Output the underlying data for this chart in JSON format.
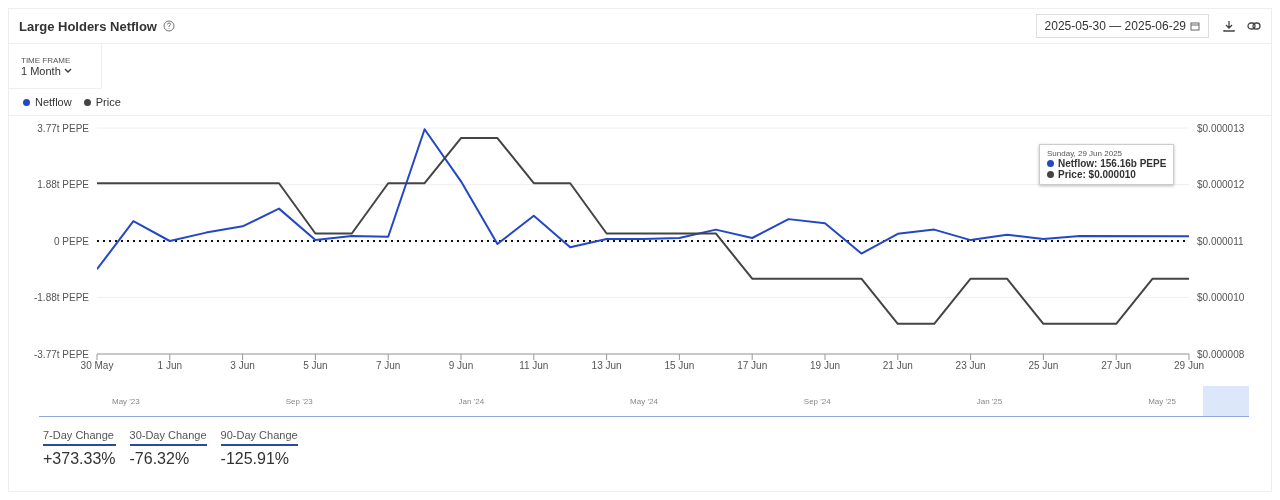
{
  "chart_data": {
    "type": "line",
    "title": "Large Holders Netflow",
    "x": [
      "2025-05-30",
      "2025-05-31",
      "2025-06-01",
      "2025-06-02",
      "2025-06-03",
      "2025-06-04",
      "2025-06-05",
      "2025-06-06",
      "2025-06-07",
      "2025-06-08",
      "2025-06-09",
      "2025-06-10",
      "2025-06-11",
      "2025-06-12",
      "2025-06-13",
      "2025-06-14",
      "2025-06-15",
      "2025-06-16",
      "2025-06-17",
      "2025-06-18",
      "2025-06-19",
      "2025-06-20",
      "2025-06-21",
      "2025-06-22",
      "2025-06-23",
      "2025-06-24",
      "2025-06-25",
      "2025-06-26",
      "2025-06-27",
      "2025-06-28",
      "2025-06-29"
    ],
    "series": [
      {
        "name": "Netflow",
        "color": "#2347c5",
        "values": [
          -0.94,
          0.66,
          0.0,
          0.28,
          0.49,
          1.08,
          0.03,
          0.17,
          0.14,
          3.73,
          1.99,
          -0.1,
          0.84,
          -0.21,
          0.07,
          0.07,
          0.1,
          0.38,
          0.1,
          0.73,
          0.59,
          -0.42,
          0.24,
          0.38,
          0.03,
          0.21,
          0.07,
          0.17,
          null,
          null,
          0.16
        ]
      },
      {
        "name": "Price",
        "color": "#444444",
        "axis": "y2",
        "values": [
          1.19e-05,
          1.19e-05,
          1.19e-05,
          1.19e-05,
          1.19e-05,
          1.19e-05,
          1.09e-05,
          1.09e-05,
          1.19e-05,
          1.19e-05,
          1.28e-05,
          1.28e-05,
          1.19e-05,
          1.19e-05,
          1.09e-05,
          1.09e-05,
          1.09e-05,
          1.09e-05,
          1e-05,
          1e-05,
          1e-05,
          1e-05,
          9.1e-06,
          9.1e-06,
          1e-05,
          1e-05,
          9.1e-06,
          9.1e-06,
          9.1e-06,
          1e-05,
          1e-05
        ]
      }
    ],
    "xlim": [
      "2025-05-30",
      "2025-06-29"
    ],
    "xticks": [
      {
        "value": "2025-05-30",
        "label": "30 May"
      },
      {
        "value": "2025-06-01",
        "label": "1 Jun"
      },
      {
        "value": "2025-06-03",
        "label": "3 Jun"
      },
      {
        "value": "2025-06-05",
        "label": "5 Jun"
      },
      {
        "value": "2025-06-07",
        "label": "7 Jun"
      },
      {
        "value": "2025-06-09",
        "label": "9 Jun"
      },
      {
        "value": "2025-06-11",
        "label": "11 Jun"
      },
      {
        "value": "2025-06-13",
        "label": "13 Jun"
      },
      {
        "value": "2025-06-15",
        "label": "15 Jun"
      },
      {
        "value": "2025-06-17",
        "label": "17 Jun"
      },
      {
        "value": "2025-06-19",
        "label": "19 Jun"
      },
      {
        "value": "2025-06-21",
        "label": "21 Jun"
      },
      {
        "value": "2025-06-23",
        "label": "23 Jun"
      },
      {
        "value": "2025-06-25",
        "label": "25 Jun"
      },
      {
        "value": "2025-06-27",
        "label": "27 Jun"
      },
      {
        "value": "2025-06-29",
        "label": "29 Jun"
      }
    ],
    "ylim": [
      -3.77,
      3.77
    ],
    "yticks": [
      {
        "value": -3.77,
        "label": "-3.77t PEPE"
      },
      {
        "value": -1.88,
        "label": "-1.88t PEPE"
      },
      {
        "value": 0,
        "label": "0 PEPE"
      },
      {
        "value": 1.88,
        "label": "1.88t PEPE"
      },
      {
        "value": 3.77,
        "label": "3.77t PEPE"
      }
    ],
    "y2lim": [
      8.5e-06,
      1.3e-05
    ],
    "y2ticks": [
      {
        "value": 8.5e-06,
        "label": "$0.000008"
      },
      {
        "value": 9.625e-06,
        "label": "$0.000010"
      },
      {
        "value": 1.075e-05,
        "label": "$0.000011"
      },
      {
        "value": 1.1875e-05,
        "label": "$0.000012"
      },
      {
        "value": 1.3e-05,
        "label": "$0.000013"
      }
    ],
    "ref_lines": [
      {
        "axis": "y",
        "value": 0,
        "color": "#111111",
        "line_style": "dotted"
      }
    ],
    "grid": "y",
    "legend": "top left",
    "marker": "none",
    "line_style": "solid",
    "annotations": [
      "2025-05-30 — 2025-06-29",
      "TIME FRAME",
      "1 Month",
      "Sunday, 29 Jun 2025",
      "Netflow: 156.16b PEPE",
      "Price: $0.000010",
      "May '23",
      "Sep '23",
      "Jan '24",
      "May '24",
      "Sep '24",
      "Jan '25",
      "May '25",
      "7-Day Change",
      "+373.33%",
      "30-Day Change",
      "-76.32%",
      "90-Day Change",
      "-125.91%"
    ]
  }
}
